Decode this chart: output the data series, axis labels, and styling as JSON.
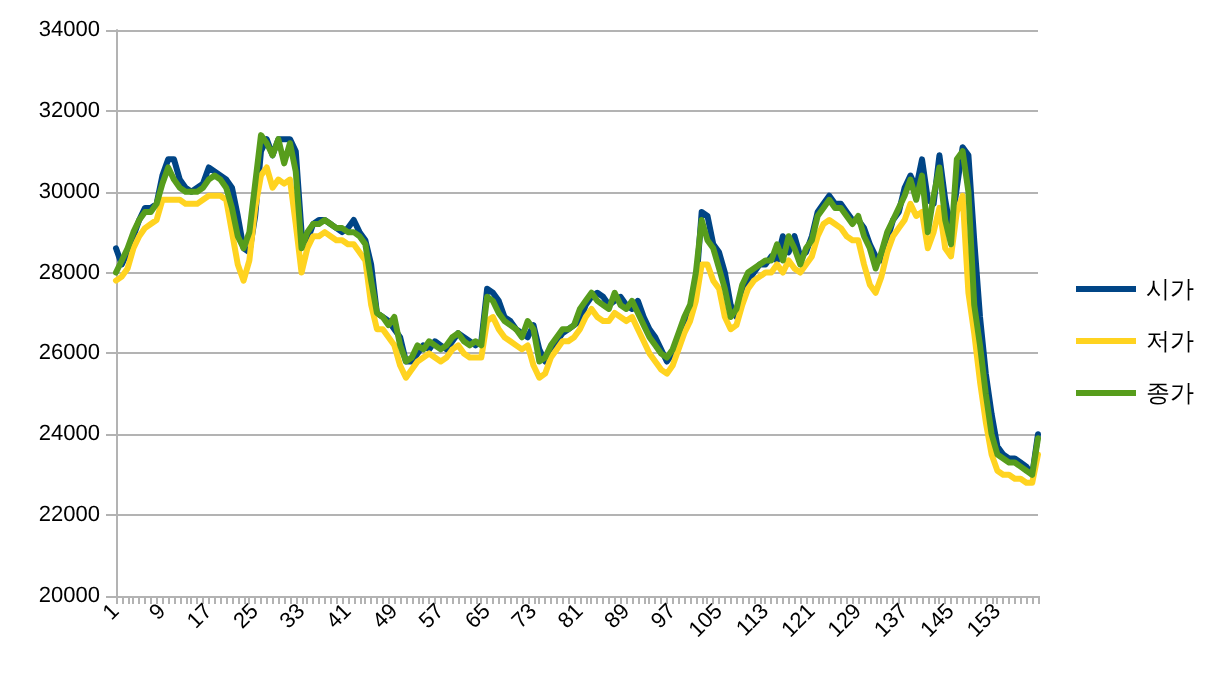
{
  "chart_data": {
    "type": "line",
    "categories": [
      "1",
      null,
      null,
      null,
      null,
      null,
      null,
      null,
      "9",
      null,
      null,
      null,
      null,
      null,
      null,
      null,
      "17",
      null,
      null,
      null,
      null,
      null,
      null,
      null,
      "25",
      null,
      null,
      null,
      null,
      null,
      null,
      null,
      "33",
      null,
      null,
      null,
      null,
      null,
      null,
      null,
      "41",
      null,
      null,
      null,
      null,
      null,
      null,
      null,
      "49",
      null,
      null,
      null,
      null,
      null,
      null,
      null,
      "57",
      null,
      null,
      null,
      null,
      null,
      null,
      null,
      "65",
      null,
      null,
      null,
      null,
      null,
      null,
      null,
      "73",
      null,
      null,
      null,
      null,
      null,
      null,
      null,
      "81",
      null,
      null,
      null,
      null,
      null,
      null,
      null,
      "89",
      null,
      null,
      null,
      null,
      null,
      null,
      null,
      "97",
      null,
      null,
      null,
      null,
      null,
      null,
      null,
      "105",
      null,
      null,
      null,
      null,
      null,
      null,
      null,
      "113",
      null,
      null,
      null,
      null,
      null,
      null,
      null,
      "121",
      null,
      null,
      null,
      null,
      null,
      null,
      null,
      "129",
      null,
      null,
      null,
      null,
      null,
      null,
      null,
      "137",
      null,
      null,
      null,
      null,
      null,
      null,
      null,
      "145",
      null,
      null,
      null,
      null,
      null,
      null,
      null,
      "153",
      null,
      null,
      null,
      null,
      null,
      null,
      null
    ],
    "series": [
      {
        "name": "시가",
        "color": "#004586",
        "values": [
          28600,
          28200,
          28500,
          28900,
          29300,
          29600,
          29600,
          29700,
          30400,
          30800,
          30800,
          30300,
          30100,
          30000,
          30100,
          30200,
          30600,
          30500,
          30400,
          30300,
          30100,
          29400,
          28600,
          28500,
          29400,
          31000,
          31300,
          30900,
          31300,
          31300,
          31300,
          31000,
          29000,
          28800,
          29200,
          29300,
          29300,
          29200,
          29100,
          29000,
          29100,
          29300,
          29000,
          28800,
          28200,
          27000,
          26900,
          26800,
          26600,
          26400,
          25800,
          25800,
          26000,
          26200,
          26100,
          26300,
          26200,
          26100,
          26300,
          26500,
          26400,
          26300,
          26200,
          26300,
          27600,
          27500,
          27300,
          26900,
          26800,
          26600,
          26500,
          26400,
          26700,
          26100,
          25800,
          26000,
          26300,
          26500,
          26600,
          26700,
          26800,
          27200,
          27400,
          27500,
          27400,
          27200,
          27300,
          27400,
          27200,
          27100,
          27300,
          26900,
          26600,
          26400,
          26100,
          25800,
          26000,
          26300,
          26700,
          27000,
          27600,
          29500,
          29400,
          28700,
          28500,
          28000,
          27200,
          26900,
          27400,
          27800,
          28000,
          28200,
          28200,
          28400,
          28300,
          28900,
          28500,
          28900,
          28400,
          28500,
          28900,
          29500,
          29700,
          29900,
          29700,
          29700,
          29500,
          29300,
          29300,
          29100,
          28700,
          28400,
          28300,
          28800,
          29300,
          29500,
          30100,
          30400,
          30100,
          30800,
          29800,
          29700,
          30900,
          29800,
          29000,
          30100,
          31100,
          30900,
          28800,
          26900,
          25500,
          24500,
          23700,
          23500,
          23400,
          23400,
          23300,
          23200,
          23000,
          24000
        ]
      },
      {
        "name": "저가",
        "color": "#ffd320",
        "values": [
          27800,
          27900,
          28100,
          28600,
          28900,
          29100,
          29200,
          29300,
          29800,
          29800,
          29800,
          29800,
          29700,
          29700,
          29700,
          29800,
          29900,
          29900,
          29900,
          29800,
          29000,
          28200,
          27800,
          28300,
          29600,
          30400,
          30600,
          30100,
          30300,
          30200,
          30300,
          29200,
          28000,
          28600,
          28900,
          28900,
          29000,
          28900,
          28800,
          28800,
          28700,
          28700,
          28500,
          28300,
          27200,
          26600,
          26600,
          26400,
          26200,
          25700,
          25400,
          25600,
          25800,
          25900,
          26000,
          25900,
          25800,
          25900,
          26100,
          26200,
          26000,
          25900,
          25900,
          25900,
          26800,
          26900,
          26600,
          26400,
          26300,
          26200,
          26100,
          26200,
          25700,
          25400,
          25500,
          25900,
          26100,
          26300,
          26300,
          26400,
          26600,
          26900,
          27100,
          26900,
          26800,
          26800,
          27000,
          26900,
          26800,
          26900,
          26600,
          26300,
          26000,
          25800,
          25600,
          25500,
          25700,
          26100,
          26500,
          26800,
          27300,
          28200,
          28200,
          27800,
          27600,
          26900,
          26600,
          26700,
          27200,
          27600,
          27800,
          27900,
          28000,
          28000,
          28200,
          28000,
          28300,
          28100,
          28000,
          28200,
          28400,
          28900,
          29200,
          29300,
          29200,
          29100,
          28900,
          28800,
          28800,
          28200,
          27700,
          27500,
          27900,
          28500,
          28900,
          29100,
          29300,
          29700,
          29400,
          29500,
          28600,
          29000,
          29600,
          28600,
          28400,
          29500,
          29900,
          27500,
          26500,
          25300,
          24300,
          23500,
          23100,
          23000,
          23000,
          22900,
          22900,
          22800,
          22800,
          23500
        ]
      },
      {
        "name": "종가",
        "color": "#579d1c",
        "values": [
          28000,
          28300,
          28600,
          29000,
          29300,
          29500,
          29500,
          29700,
          30200,
          30600,
          30300,
          30100,
          30000,
          30000,
          30000,
          30100,
          30300,
          30400,
          30300,
          30100,
          29600,
          28900,
          28600,
          29000,
          30200,
          31400,
          31200,
          30900,
          31300,
          30700,
          31200,
          30500,
          28600,
          29000,
          29200,
          29200,
          29300,
          29200,
          29100,
          29100,
          29000,
          29000,
          28900,
          28700,
          27800,
          27000,
          26900,
          26700,
          26900,
          26200,
          25800,
          25900,
          26200,
          26100,
          26300,
          26200,
          26100,
          26200,
          26400,
          26500,
          26300,
          26200,
          26300,
          26200,
          27400,
          27300,
          27000,
          26800,
          26700,
          26600,
          26400,
          26800,
          26600,
          25800,
          25900,
          26200,
          26400,
          26600,
          26600,
          26700,
          27100,
          27300,
          27500,
          27300,
          27200,
          27100,
          27500,
          27200,
          27100,
          27300,
          27000,
          26700,
          26400,
          26200,
          26000,
          25900,
          26100,
          26500,
          26900,
          27200,
          28000,
          29300,
          28800,
          28600,
          28100,
          27600,
          26900,
          27100,
          27700,
          28000,
          28100,
          28200,
          28300,
          28300,
          28700,
          28300,
          28900,
          28600,
          28200,
          28600,
          28800,
          29400,
          29600,
          29800,
          29600,
          29600,
          29400,
          29200,
          29400,
          28900,
          28600,
          28100,
          28500,
          29000,
          29300,
          29600,
          29900,
          30300,
          29800,
          30400,
          29000,
          29900,
          30600,
          29300,
          28700,
          30800,
          31000,
          30000,
          27200,
          26200,
          25000,
          24000,
          23500,
          23400,
          23300,
          23300,
          23200,
          23100,
          23000,
          23900
        ]
      }
    ],
    "ylim": [
      20000,
      34000
    ],
    "yticks": [
      20000,
      22000,
      24000,
      26000,
      28000,
      30000,
      32000,
      34000
    ],
    "grid": "y",
    "legend": "right",
    "marker": "none",
    "line_style": "solid"
  }
}
